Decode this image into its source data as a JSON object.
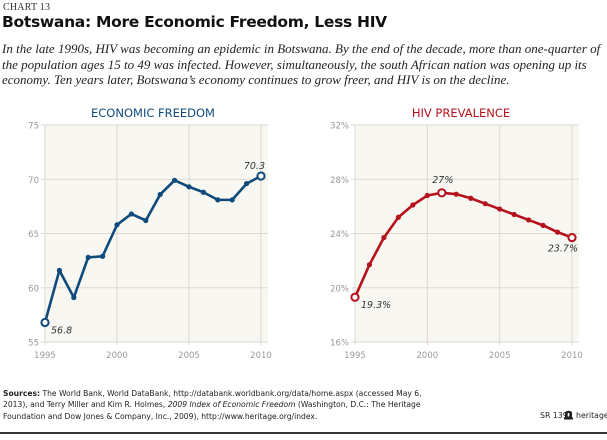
{
  "header": {
    "chart_number": "CHART 13",
    "title": "Botswana: More Economic Freedom, Less HIV",
    "subtitle": "In the late 1990s, HIV was becoming an epidemic in Botswana. By the end of the decade, more than one-quarter of the population ages 15 to 49 was infected. However, simultaneously, the south African nation was opening up its economy. Ten years later, Botswana’s economy continues to grow freer, and HIV is on the decline."
  },
  "chart_data": [
    {
      "type": "line",
      "title": "ECONOMIC FREEDOM",
      "color": "#0f4a7d",
      "x": [
        1995,
        1996,
        1997,
        1998,
        1999,
        2000,
        2001,
        2002,
        2003,
        2004,
        2005,
        2006,
        2007,
        2008,
        2009,
        2010
      ],
      "values": [
        56.8,
        61.6,
        59.1,
        62.8,
        62.9,
        65.8,
        66.8,
        66.2,
        68.6,
        69.9,
        69.3,
        68.8,
        68.1,
        68.1,
        69.6,
        70.3
      ],
      "xticks": [
        1995,
        2000,
        2005,
        2010
      ],
      "xtick_labels": [
        "1995",
        "2000",
        "2005",
        "2010"
      ],
      "yticks": [
        55,
        60,
        65,
        70,
        75
      ],
      "ytick_labels": [
        "55",
        "60",
        "65",
        "70",
        "75"
      ],
      "ylim": [
        55,
        75
      ],
      "xlim": [
        1995,
        2010
      ],
      "grid": true,
      "xlabel": "",
      "ylabel": "",
      "annotations": [
        {
          "x": 1995,
          "value": 56.8,
          "text": "56.8",
          "place": "below-right"
        },
        {
          "x": 2010,
          "value": 70.3,
          "text": "70.3",
          "place": "above-left"
        }
      ]
    },
    {
      "type": "line",
      "title": "HIV PREVALENCE",
      "color": "#b5121b",
      "x": [
        1995,
        1996,
        1997,
        1998,
        1999,
        2000,
        2001,
        2002,
        2003,
        2004,
        2005,
        2006,
        2007,
        2008,
        2009,
        2010
      ],
      "values": [
        19.3,
        21.7,
        23.7,
        25.2,
        26.1,
        26.8,
        27.0,
        26.9,
        26.6,
        26.2,
        25.8,
        25.4,
        25.0,
        24.6,
        24.1,
        23.7
      ],
      "xticks": [
        1995,
        2000,
        2005,
        2010
      ],
      "xtick_labels": [
        "1995",
        "2000",
        "2005",
        "2010"
      ],
      "yticks": [
        16,
        20,
        24,
        28,
        32
      ],
      "ytick_labels": [
        "16%",
        "20%",
        "24%",
        "28%",
        "32%"
      ],
      "ylim": [
        16,
        32
      ],
      "xlim": [
        1995,
        2010
      ],
      "grid": true,
      "xlabel": "",
      "ylabel": "",
      "annotations": [
        {
          "x": 1995,
          "value": 19.3,
          "text": "19.3%",
          "place": "below-right"
        },
        {
          "x": 2001,
          "value": 27.0,
          "text": "27%",
          "place": "above"
        },
        {
          "x": 2010,
          "value": 23.7,
          "text": "23.7%",
          "place": "below-left"
        }
      ]
    }
  ],
  "footer": {
    "sources_label": "Sources:",
    "sources_part1": " The World Bank, World DataBank, http://databank.worldbank.org/data/home.aspx (accessed May 6, 2013), and Terry Miller and Kim R. Holmes, ",
    "sources_italic": "2009 Index of Economic Freedom",
    "sources_part2": " (Washington, D.C.: The Heritage Foundation and Dow Jones & Company, Inc., 2009), http://www.heritage.org/index.",
    "report_id": "SR 139",
    "logo_icon": "heritage-bell-icon",
    "site": "heritage.org"
  }
}
